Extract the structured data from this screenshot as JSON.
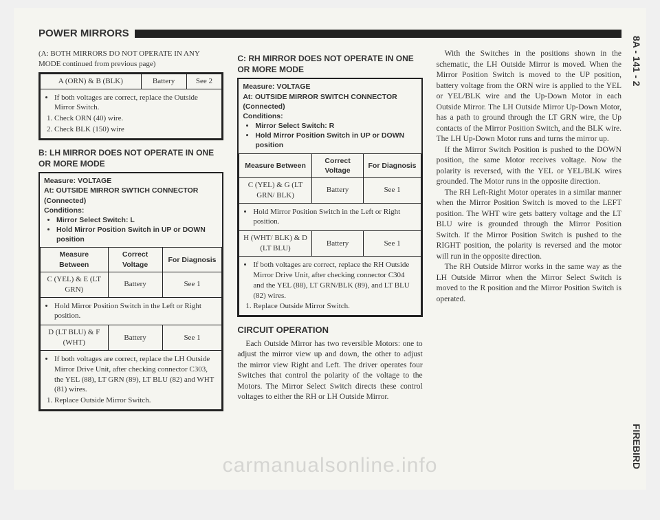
{
  "header": {
    "title": "POWER MIRRORS"
  },
  "side": {
    "top": "8A - 141 - 2",
    "bottom": "FIREBIRD"
  },
  "watermark": "carmanualsonline.info",
  "col1": {
    "continued": "(A: BOTH MIRRORS DO NOT OPERATE IN ANY MODE continued from previous page)",
    "boxA": {
      "row": {
        "c1": "A (ORN) & B (BLK)",
        "c2": "Battery",
        "c3": "See 2"
      },
      "notes": [
        "If both voltages are correct, replace the Outside Mirror Switch.",
        "Check ORN (40) wire.",
        "Check BLK (150) wire"
      ]
    },
    "hB": "B: LH MIRROR DOES NOT OPERATE IN ONE OR MORE MODE",
    "boxB": {
      "measure_label": "Measure: VOLTAGE",
      "at_label": "At: OUTSIDE MIRROR SWTICH CONNECTOR (Connected)",
      "cond_label": "Conditions:",
      "conds": [
        "Mirror Select Switch: L",
        "Hold Mirror Position Switch in UP or DOWN position"
      ],
      "head": {
        "c1": "Measure Between",
        "c2": "Correct Voltage",
        "c3": "For Diagnosis"
      },
      "row1": {
        "c1": "C (YEL) & E (LT GRN)",
        "c2": "Battery",
        "c3": "See 1"
      },
      "note1": "Hold Mirror Position Switch in the Left or Right position.",
      "row2": {
        "c1": "D (LT BLU) & F (WHT)",
        "c2": "Battery",
        "c3": "See 1"
      },
      "final_bullet": "If both voltages are correct, replace the LH Outside Mirror Drive Unit, after checking connector C303, the YEL (88), LT GRN (89), LT BLU (82) and WHT (81) wires.",
      "final_num": "Replace Outside Mirror Switch."
    }
  },
  "col2": {
    "hC": "C: RH MIRROR DOES NOT OPERATE IN ONE OR MORE MODE",
    "boxC": {
      "measure_label": "Measure: VOLTAGE",
      "at_label": "At: OUTSIDE MIRROR SWITCH CONNECTOR (Connected)",
      "cond_label": "Conditions:",
      "conds": [
        "Mirror Select Switch: R",
        "Hold Mirror Position Switch in UP or DOWN position"
      ],
      "head": {
        "c1": "Measure Between",
        "c2": "Correct Voltage",
        "c3": "For Diagnosis"
      },
      "row1": {
        "c1": "C (YEL) & G (LT GRN/ BLK)",
        "c2": "Battery",
        "c3": "See 1"
      },
      "note1": "Hold Mirror Position Switch in the Left or Right position.",
      "row2": {
        "c1": "H (WHT/ BLK) & D (LT BLU)",
        "c2": "Battery",
        "c3": "See 1"
      },
      "final_bullet": "If both voltages are correct, replace the RH Outside Mirror Drive Unit, after checking connector C304 and the YEL (88), LT GRN/BLK (89), and LT BLU (82) wires.",
      "final_num": "Replace Outside Mirror Switch."
    },
    "hOp": "CIRCUIT OPERATION",
    "op_p1": "Each Outside Mirror has two reversible Motors: one to adjust the mirror view up and down, the other to adjust the mirror view Right and Left. The driver operates four Switches that control the polarity of the voltage to the Motors. The Mirror Select Switch directs these control voltages to either the RH or LH Outside Mirror."
  },
  "col3": {
    "p1": "With the Switches in the positions shown in the schematic, the LH Outside Mirror is moved. When the Mirror Position Switch is moved to the UP position, battery voltage from the ORN wire is applied to the YEL or YEL/BLK wire and the Up-Down Motor in each Outside Mirror. The LH Outside Mirror Up-Down Motor, has a path to ground through the LT GRN wire, the Up contacts of the Mirror Position Switch, and the BLK wire. The LH Up-Down Motor runs and turns the mirror up.",
    "p2": "If the Mirror Switch Position is pushed to the DOWN position, the same Motor receives voltage. Now the polarity is reversed, with the YEL or YEL/BLK wires grounded. The Motor runs in the opposite direction.",
    "p3": "The RH Left-Right Motor operates in a similar manner when the Mirror Position Switch is moved to the LEFT position. The WHT wire gets battery voltage and the LT BLU wire is grounded through the Mirror Position Switch. If the Mirror Position Switch is pushed to the RIGHT position, the polarity is reversed and the motor will run in the opposite direction.",
    "p4": "The RH Outside Mirror works in the same way as the LH Outside Mirror when the Mirror Select Switch is moved to the R position and the Mirror Position Switch is operated."
  }
}
